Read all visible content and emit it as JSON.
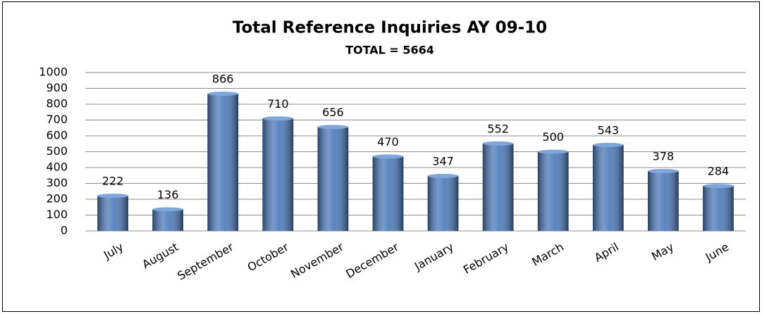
{
  "chart_data": {
    "type": "bar",
    "title": "Total Reference Inquiries AY 09-10",
    "subtitle": "TOTAL = 5664",
    "categories": [
      "July",
      "August",
      "September",
      "October",
      "November",
      "December",
      "January",
      "February",
      "March",
      "April",
      "May",
      "June"
    ],
    "values": [
      222,
      136,
      866,
      710,
      656,
      470,
      347,
      552,
      500,
      543,
      378,
      284
    ],
    "color": "#4a78b8",
    "ylim": [
      0,
      1000
    ],
    "yticks": [
      0,
      100,
      200,
      300,
      400,
      500,
      600,
      700,
      800,
      900,
      1000
    ],
    "grid": true
  }
}
